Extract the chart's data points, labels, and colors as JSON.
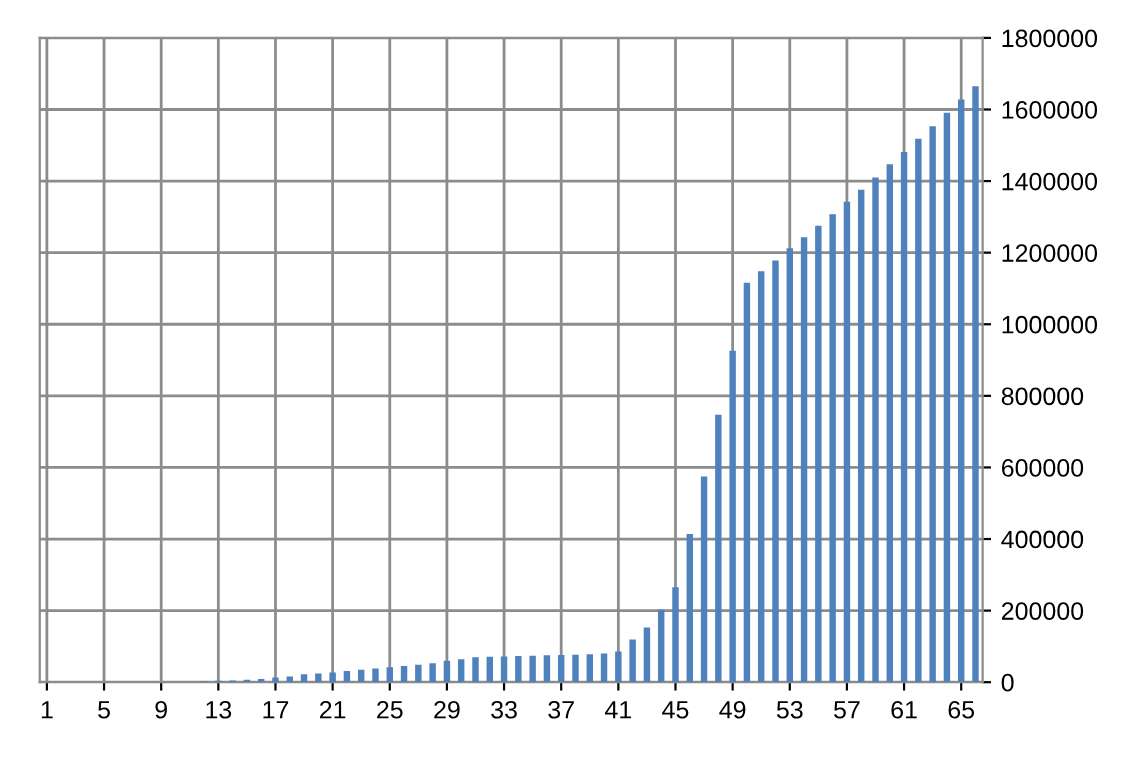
{
  "chart_data": {
    "type": "bar",
    "categories": [
      "1",
      null,
      null,
      null,
      "5",
      null,
      null,
      null,
      "9",
      null,
      null,
      null,
      "13",
      null,
      null,
      null,
      "17",
      null,
      null,
      null,
      "21",
      null,
      null,
      null,
      "25",
      null,
      null,
      null,
      "29",
      null,
      null,
      null,
      "33",
      null,
      null,
      null,
      "37",
      null,
      null,
      null,
      "41",
      null,
      null,
      null,
      "45",
      null,
      null,
      null,
      "49",
      null,
      null,
      null,
      "53",
      null,
      null,
      null,
      "57",
      null,
      null,
      null,
      "61",
      null,
      null,
      null,
      "65",
      null
    ],
    "values": [
      0,
      0,
      0,
      0,
      0,
      0,
      0,
      0,
      0,
      0,
      0,
      3000,
      4000,
      5000,
      7000,
      9000,
      13000,
      16000,
      22000,
      24000,
      27000,
      31000,
      35000,
      38000,
      42000,
      45000,
      49000,
      53000,
      60000,
      64000,
      70000,
      71000,
      72000,
      73000,
      74000,
      75000,
      76000,
      77000,
      78000,
      80000,
      86000,
      119000,
      153000,
      203000,
      265000,
      414000,
      575000,
      747000,
      926000,
      1116000,
      1148000,
      1178000,
      1212000,
      1243000,
      1275000,
      1307000,
      1342000,
      1376000,
      1410000,
      1447000,
      1481000,
      1518000,
      1553000,
      1591000,
      1628000,
      1665000
    ],
    "color": "#4f81bd",
    "ylim": [
      0,
      1800000
    ],
    "yticks": [
      0,
      200000,
      400000,
      600000,
      800000,
      1000000,
      1200000,
      1400000,
      1600000,
      1800000
    ],
    "grid": true
  }
}
